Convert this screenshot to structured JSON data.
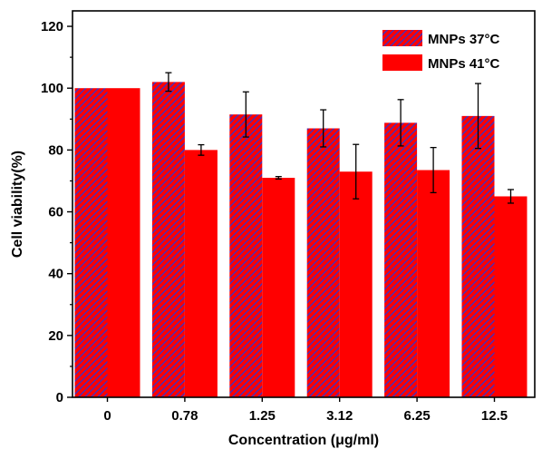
{
  "chart_data": {
    "type": "bar",
    "categories": [
      "0",
      "0.78",
      "1.25",
      "3.12",
      "6.25",
      "12.5"
    ],
    "series": [
      {
        "name": "MNPs 37°C",
        "values": [
          100,
          102,
          91.5,
          87,
          88.8,
          91
        ],
        "errors": [
          0,
          3,
          7.3,
          6,
          7.5,
          10.5
        ],
        "color": "#ff0000",
        "hatch_color": "#3333cc",
        "pattern": "diagonal-hatch"
      },
      {
        "name": "MNPs 41°C",
        "values": [
          100,
          80,
          71,
          73,
          73.5,
          65
        ],
        "errors": [
          0,
          1.7,
          0.4,
          8.8,
          7.3,
          2.2
        ],
        "color": "#ff0000",
        "pattern": "solid"
      }
    ],
    "xlabel": "Concentration (μg/ml)",
    "ylabel": "Cell viability(%)",
    "ylim": [
      0,
      125
    ],
    "yticks": [
      0,
      20,
      40,
      60,
      80,
      100,
      120
    ],
    "grid": false,
    "legend_position": "top-right"
  }
}
